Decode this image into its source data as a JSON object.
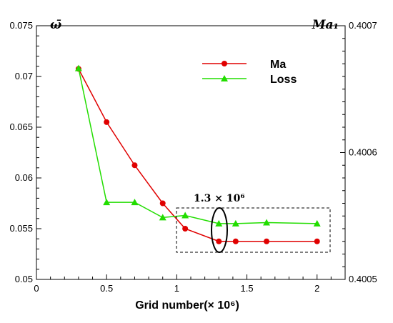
{
  "chart_data": {
    "type": "line",
    "xlabel": "Grid number(× 10⁶)",
    "x_ticks": [
      "0",
      "0.5",
      "1",
      "1.5",
      "2"
    ],
    "xlim": [
      0,
      2.2
    ],
    "left_axis": {
      "label": "ω̄",
      "ylim": [
        0.05,
        0.075
      ],
      "ticks": [
        "0.05",
        "0.055",
        "0.06",
        "0.065",
        "0.07",
        "0.075"
      ]
    },
    "right_axis": {
      "label": "Ma₁",
      "ylim": [
        0.4005,
        0.4007
      ],
      "ticks": [
        "0.4005",
        "0.4006",
        "0.4007"
      ]
    },
    "series": [
      {
        "name": "Ma",
        "axis": "right",
        "color": "#e00000",
        "marker": "circle",
        "x": [
          0.3,
          0.5,
          0.7,
          0.9,
          1.06,
          1.3,
          1.42,
          1.64,
          2.0
        ],
        "y": [
          0.400666,
          0.400624,
          0.40059,
          0.40056,
          0.40054,
          0.40053,
          0.40053,
          0.40053,
          0.40053
        ]
      },
      {
        "name": "Loss",
        "axis": "left",
        "color": "#22dd00",
        "marker": "triangle",
        "x": [
          0.3,
          0.5,
          0.7,
          0.9,
          1.06,
          1.3,
          1.42,
          1.64,
          2.0
        ],
        "y": [
          0.0708,
          0.0576,
          0.0576,
          0.0561,
          0.0563,
          0.0555,
          0.0555,
          0.0556,
          0.0555
        ]
      }
    ],
    "legend": {
      "placement": "top-right",
      "entries": [
        "Ma",
        "Loss"
      ]
    },
    "annotation": {
      "text": "1.3 × 10⁶",
      "x": 1.3
    },
    "grid": false
  }
}
